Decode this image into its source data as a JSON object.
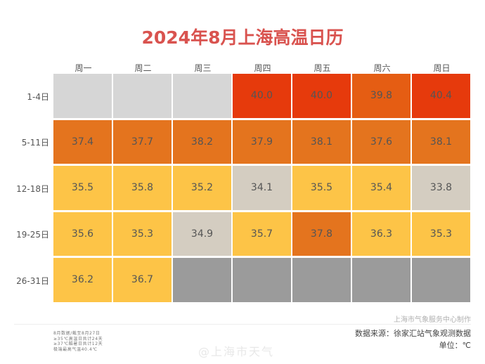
{
  "chart_data": {
    "type": "heatmap",
    "title": "2024年8月上海高温日历",
    "columns": [
      "周一",
      "周二",
      "周三",
      "周四",
      "周五",
      "周六",
      "周日"
    ],
    "rows": [
      {
        "label": "1-4日",
        "values": [
          null,
          null,
          null,
          40.0,
          40.0,
          39.8,
          40.4
        ],
        "display": [
          "",
          "",
          "",
          "40.0",
          "40.0",
          "39.8",
          "40.4"
        ]
      },
      {
        "label": "5-11日",
        "values": [
          37.4,
          37.7,
          38.2,
          37.9,
          38.1,
          37.6,
          38.1
        ],
        "display": [
          "37.4",
          "37.7",
          "38.2",
          "37.9",
          "38.1",
          "37.6",
          "38.1"
        ]
      },
      {
        "label": "12-18日",
        "values": [
          35.5,
          35.8,
          35.2,
          34.1,
          35.5,
          35.4,
          33.8
        ],
        "display": [
          "35.5",
          "35.8",
          "35.2",
          "34.1",
          "35.5",
          "35.4",
          "33.8"
        ]
      },
      {
        "label": "19-25日",
        "values": [
          35.6,
          35.3,
          34.9,
          35.7,
          37.8,
          36.3,
          35.3
        ],
        "display": [
          "35.6",
          "35.3",
          "34.9",
          "35.7",
          "37.8",
          "36.3",
          "35.3"
        ]
      },
      {
        "label": "26-31日",
        "values": [
          36.2,
          36.7,
          null,
          null,
          null,
          null,
          null
        ],
        "display": [
          "36.2",
          "36.7",
          "",
          "",
          "",
          "",
          ""
        ]
      }
    ],
    "no_data_states": [
      [
        "before",
        "before",
        "before",
        null,
        null,
        null,
        null
      ],
      [
        null,
        null,
        null,
        null,
        null,
        null,
        null
      ],
      [
        null,
        null,
        null,
        null,
        null,
        null,
        null
      ],
      [
        null,
        null,
        null,
        null,
        null,
        null,
        null
      ],
      [
        null,
        null,
        "after",
        "after",
        "after",
        "after",
        "after"
      ]
    ],
    "color_scale": {
      "ge40": "#e63a0c",
      "ge38_5": "#e55d13",
      "ge37": "#e4741e",
      "ge35": "#fdc447",
      "lt35": "#d4cdc1",
      "before_month": "#d6d6d6",
      "after_data": "#9b9b9b"
    },
    "unit": "℃"
  },
  "footer": {
    "credit": "上海市气象服务中心制作",
    "source": "数据来源：徐家汇站气象观测数据",
    "unit_label": "单位：℃",
    "notes": [
      "8月数据/截至8月27日",
      "≥35℃高温日共计24天",
      "≥37℃酷暑日共计12天",
      "极端最高气温40.4℃"
    ],
    "watermark": "@上海市天气"
  }
}
